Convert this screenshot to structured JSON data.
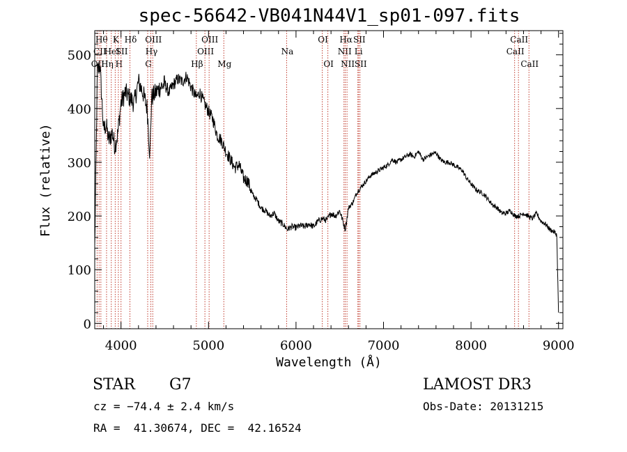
{
  "chart_data": {
    "type": "line",
    "title": "spec-56642-VB041N44V1_sp01-097.fits",
    "xlabel": "Wavelength (Å)",
    "ylabel": "Flux (relative)",
    "xlim": [
      3700,
      9050
    ],
    "ylim": [
      -10,
      545
    ],
    "xticks": [
      4000,
      5000,
      6000,
      7000,
      8000,
      9000
    ],
    "yticks": [
      0,
      100,
      200,
      300,
      400,
      500
    ],
    "series": [
      {
        "name": "flux",
        "x": [
          3700,
          3730,
          3760,
          3800,
          3830,
          3860,
          3900,
          3930,
          3960,
          4000,
          4050,
          4100,
          4150,
          4200,
          4250,
          4300,
          4330,
          4350,
          4400,
          4450,
          4500,
          4550,
          4600,
          4650,
          4700,
          4750,
          4800,
          4860,
          4900,
          4950,
          5000,
          5050,
          5100,
          5150,
          5200,
          5250,
          5300,
          5350,
          5400,
          5450,
          5500,
          5550,
          5600,
          5650,
          5700,
          5750,
          5800,
          5850,
          5900,
          5950,
          6000,
          6050,
          6100,
          6150,
          6200,
          6250,
          6300,
          6350,
          6400,
          6450,
          6500,
          6563,
          6600,
          6650,
          6700,
          6750,
          6800,
          6850,
          6900,
          6950,
          7000,
          7050,
          7100,
          7150,
          7200,
          7250,
          7300,
          7350,
          7400,
          7450,
          7500,
          7550,
          7600,
          7650,
          7700,
          7750,
          7800,
          7850,
          7900,
          7950,
          8000,
          8050,
          8100,
          8150,
          8200,
          8250,
          8300,
          8350,
          8400,
          8450,
          8500,
          8550,
          8600,
          8650,
          8700,
          8750,
          8800,
          8850,
          8900,
          8950,
          8980,
          9000
        ],
        "values": [
          140,
          470,
          480,
          360,
          370,
          340,
          355,
          330,
          350,
          410,
          430,
          420,
          410,
          450,
          430,
          400,
          310,
          420,
          430,
          440,
          445,
          430,
          445,
          455,
          450,
          460,
          440,
          420,
          430,
          410,
          395,
          380,
          350,
          340,
          320,
          305,
          290,
          295,
          270,
          265,
          240,
          230,
          215,
          210,
          200,
          205,
          190,
          185,
          175,
          180,
          178,
          182,
          180,
          185,
          180,
          190,
          195,
          192,
          205,
          200,
          210,
          175,
          215,
          225,
          245,
          255,
          265,
          275,
          280,
          285,
          290,
          295,
          305,
          300,
          305,
          310,
          315,
          310,
          320,
          305,
          310,
          315,
          318,
          305,
          300,
          300,
          295,
          290,
          285,
          270,
          260,
          250,
          245,
          240,
          230,
          220,
          215,
          205,
          205,
          210,
          200,
          200,
          205,
          200,
          195,
          205,
          190,
          185,
          175,
          170,
          165,
          20
        ]
      }
    ],
    "lines": [
      {
        "wl": 3727,
        "label": "OII",
        "row": 3
      },
      {
        "wl": 3750,
        "label": "CII",
        "row": 2
      },
      {
        "wl": 3770,
        "label": "Hθ",
        "row": 1
      },
      {
        "wl": 3835,
        "label": "Hη",
        "row": 3
      },
      {
        "wl": 3889,
        "label": "HeI",
        "row": 2
      },
      {
        "wl": 3934,
        "label": "K",
        "row": 1
      },
      {
        "wl": 3970,
        "label": "H",
        "row": 3
      },
      {
        "wl": 4000,
        "label": "SII",
        "row": 2
      },
      {
        "wl": 4102,
        "label": "Hδ",
        "row": 1
      },
      {
        "wl": 4305,
        "label": "G",
        "row": 3
      },
      {
        "wl": 4341,
        "label": "Hγ",
        "row": 2
      },
      {
        "wl": 4363,
        "label": "OIII",
        "row": 1
      },
      {
        "wl": 4861,
        "label": "Hβ",
        "row": 3
      },
      {
        "wl": 4959,
        "label": "OIII",
        "row": 2
      },
      {
        "wl": 5007,
        "label": "OIII",
        "row": 1
      },
      {
        "wl": 5175,
        "label": "Mg",
        "row": 3
      },
      {
        "wl": 5893,
        "label": "Na",
        "row": 2
      },
      {
        "wl": 6300,
        "label": "OI",
        "row": 1
      },
      {
        "wl": 6364,
        "label": "OI",
        "row": 3
      },
      {
        "wl": 6548,
        "label": "NII",
        "row": 2
      },
      {
        "wl": 6563,
        "label": "Hα",
        "row": 1
      },
      {
        "wl": 6583,
        "label": "NII",
        "row": 3
      },
      {
        "wl": 6707,
        "label": "Li",
        "row": 2
      },
      {
        "wl": 6716,
        "label": "SII",
        "row": 1
      },
      {
        "wl": 6731,
        "label": "SII",
        "row": 3
      },
      {
        "wl": 8498,
        "label": "CaII",
        "row": 2
      },
      {
        "wl": 8542,
        "label": "CaII",
        "row": 1
      },
      {
        "wl": 8662,
        "label": "CaII",
        "row": 3
      }
    ]
  },
  "info": {
    "class": "STAR",
    "subclass": "G7",
    "cz": "cz = −74.4 ± 2.4 km/s",
    "radec": "RA =  41.30674, DEC =  42.16524",
    "survey": "LAMOST DR3",
    "obs_date": "Obs-Date: 20131215"
  }
}
